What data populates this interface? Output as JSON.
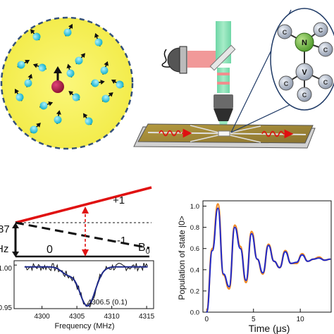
{
  "molecule": {
    "center_atom": "N",
    "vertex_atom": "V",
    "ligand_atom": "C"
  },
  "energy_diagram": {
    "left_value_fragment": "87",
    "left_unit_fragment": "Hz",
    "level_plus": "+1",
    "level_minus": "-1",
    "level_zero": "0",
    "field_label": "B",
    "field_subscript": "0"
  },
  "spectrum_chart": {
    "type": "line",
    "xlabel": "Frequency (MHz)",
    "x_ticks": [
      "4300",
      "4305",
      "4310",
      "4315"
    ],
    "y_ticks": [
      "1.00",
      "0.95"
    ],
    "annotation": "4306.5 (0.1)",
    "xlim": [
      4296,
      4316
    ],
    "ylim": [
      0.95,
      1.005
    ],
    "series_color": "#1f2a8a",
    "data_color": "#111111"
  },
  "chart_data": {
    "type": "line",
    "xlabel": "Time (μs)",
    "ylabel": "Population of state |0>",
    "x_ticks": [
      "0",
      "5",
      "10"
    ],
    "y_ticks": [
      "0.0",
      "0.2",
      "0.4",
      "0.6",
      "0.8",
      "1.0"
    ],
    "xlim": [
      -0.4,
      13.3
    ],
    "ylim": [
      0.0,
      1.05
    ],
    "series": [
      {
        "color": "#f08a24",
        "x": [
          0,
          0.6,
          1.2,
          1.8,
          2.4,
          3.0,
          3.6,
          4.2,
          4.8,
          5.4,
          6.0,
          6.6,
          7.2,
          7.8,
          8.4,
          9.0,
          9.6,
          10.2,
          10.8,
          11.4,
          12.0,
          12.6,
          13.2
        ],
        "values": [
          0.02,
          0.6,
          1.02,
          0.35,
          0.22,
          0.82,
          0.62,
          0.28,
          0.76,
          0.5,
          0.36,
          0.64,
          0.48,
          0.42,
          0.58,
          0.46,
          0.46,
          0.55,
          0.48,
          0.5,
          0.52,
          0.49,
          0.5
        ]
      },
      {
        "color": "#1f2acc",
        "x": [
          0,
          0.6,
          1.2,
          1.8,
          2.4,
          3.0,
          3.6,
          4.2,
          4.8,
          5.4,
          6.0,
          6.6,
          7.2,
          7.8,
          8.4,
          9.0,
          9.6,
          10.2,
          10.8,
          11.4,
          12.0,
          12.6,
          13.2
        ],
        "values": [
          0.0,
          0.58,
          0.98,
          0.36,
          0.24,
          0.8,
          0.6,
          0.3,
          0.74,
          0.5,
          0.37,
          0.63,
          0.48,
          0.42,
          0.57,
          0.46,
          0.47,
          0.54,
          0.48,
          0.5,
          0.51,
          0.49,
          0.5
        ]
      }
    ]
  }
}
